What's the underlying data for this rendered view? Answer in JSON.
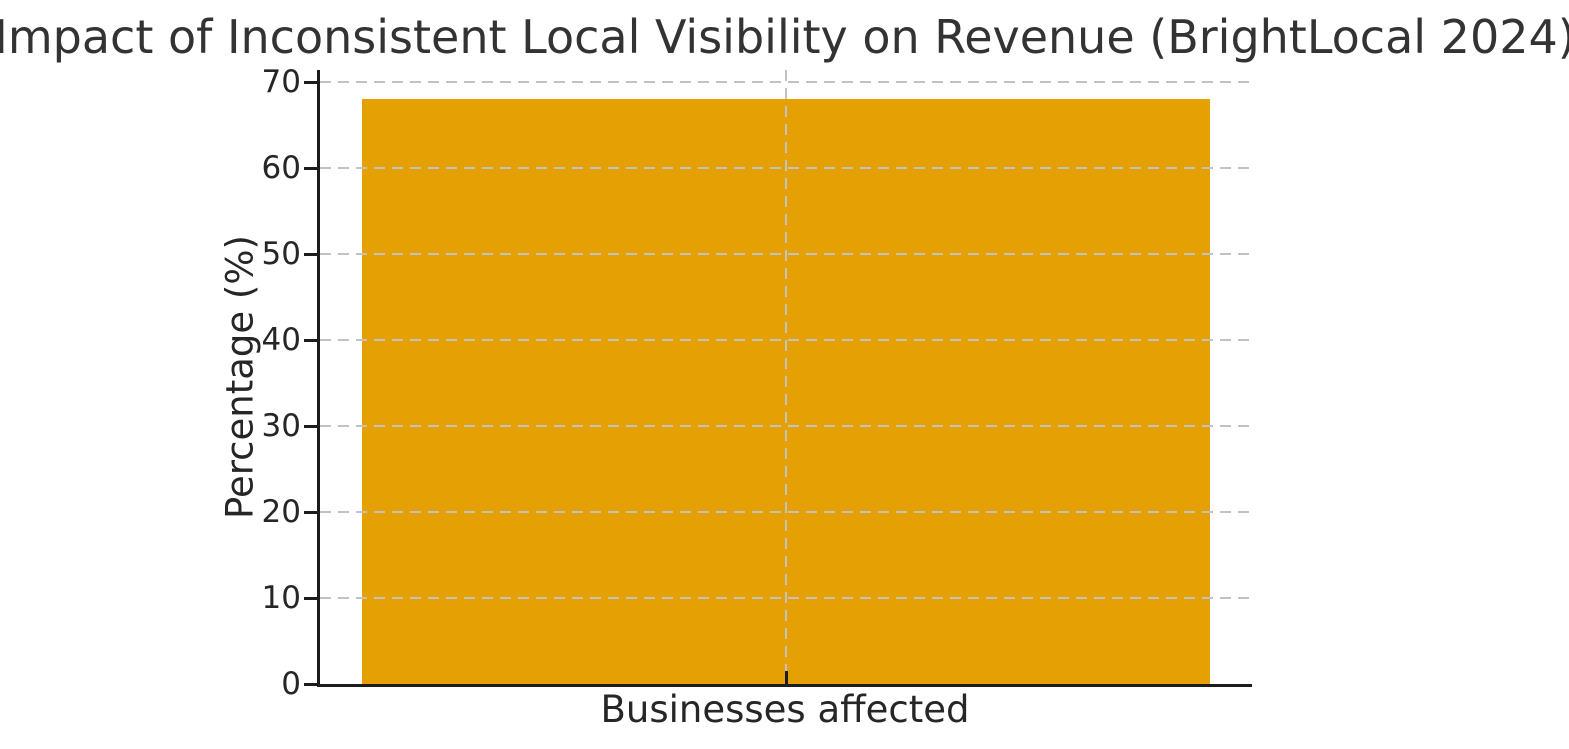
{
  "chart_data": {
    "type": "bar",
    "title": "Impact of Inconsistent Local Visibility on Revenue (BrightLocal 2024)",
    "categories": [
      "Businesses affected"
    ],
    "values": [
      68
    ],
    "xlabel": "",
    "ylabel": "Percentage (%)",
    "ylim": [
      0,
      71.4
    ],
    "yticks": [
      0,
      10,
      20,
      30,
      40,
      50,
      60,
      70
    ],
    "grid": "dashed horizontal gridlines at each y tick plus one vertical gridline at the category center, drawn above the bar",
    "legend_position": "none",
    "bar_width_fraction": 0.91
  },
  "colors": {
    "background": "#ffffff",
    "bar": "#E5A003",
    "grid": "#c2c2c2",
    "spine": "#1c1c1c",
    "text": "#262626",
    "title_text": "#333333"
  }
}
